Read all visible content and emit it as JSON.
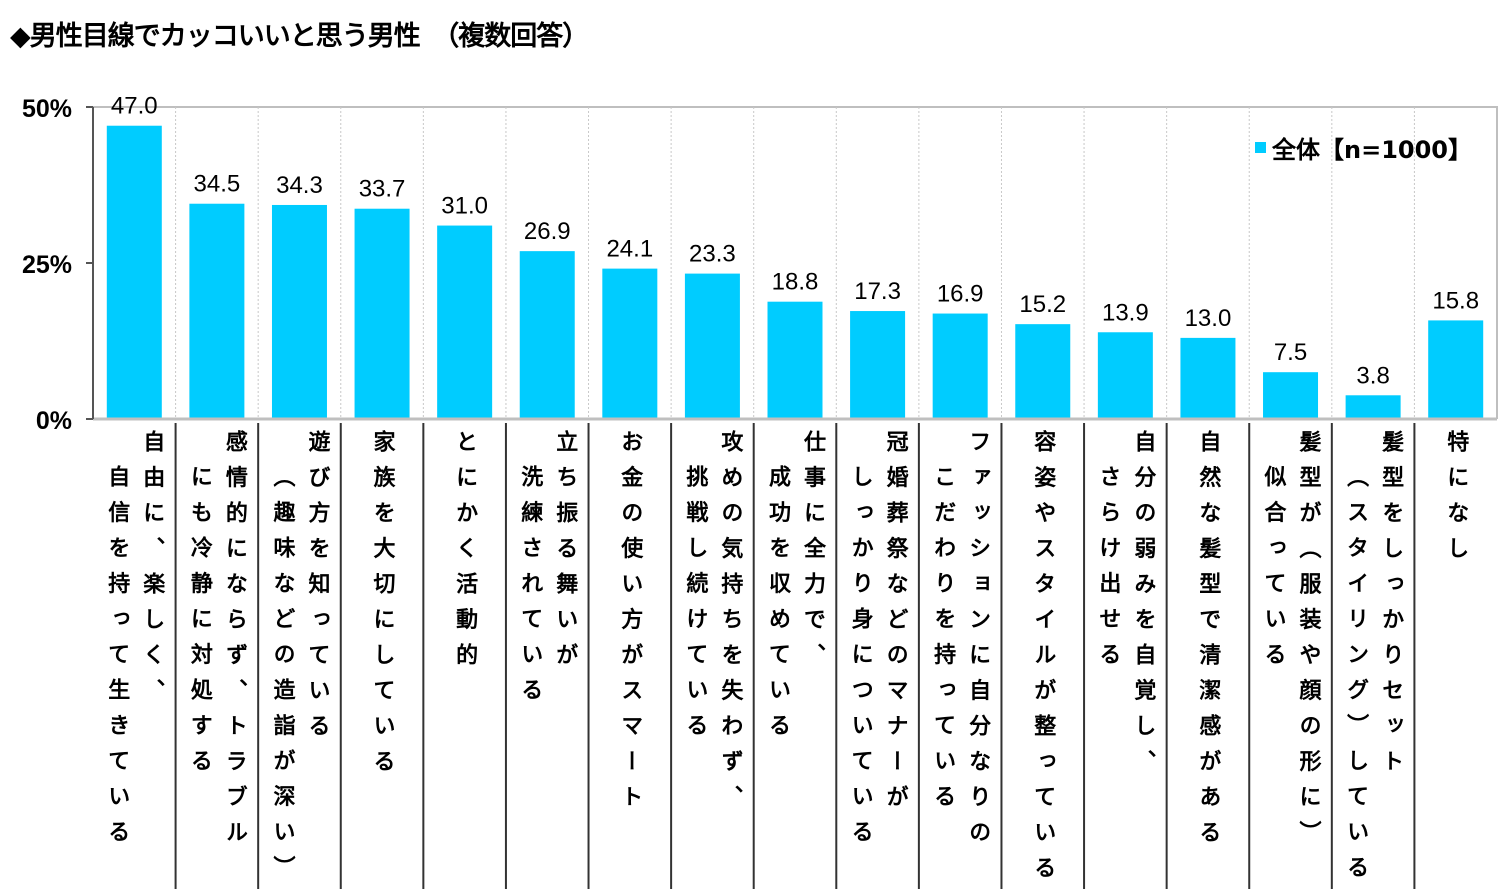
{
  "chart_data": {
    "type": "bar",
    "title": "◆男性目線でカッコいいと思う男性　（複数回答）",
    "legend": {
      "label": "全体【n=1000】",
      "color": "#00CCFF",
      "placement": "top-right"
    },
    "ylim": [
      0,
      50
    ],
    "yticks": [
      {
        "value": 0,
        "label": "0%"
      },
      {
        "value": 25,
        "label": "25%"
      },
      {
        "value": 50,
        "label": "50%"
      }
    ],
    "xlabel": "",
    "ylabel": "",
    "categories": [
      [
        "自由に、楽しく、",
        "自信を持って生きている"
      ],
      [
        "感情的にならず、トラブル",
        "にも冷静に対処する"
      ],
      [
        "遊び方を知っている",
        "（趣味などの造詣が深い）"
      ],
      [
        "家族を大切にしている"
      ],
      [
        "とにかく活動的"
      ],
      [
        "立ち振る舞いが",
        "洗練されている"
      ],
      [
        "お金の使い方がスマート"
      ],
      [
        "攻めの気持ちを失わず、",
        "挑戦し続けている"
      ],
      [
        "仕事に全力で、",
        "成功を収めている"
      ],
      [
        "冠婚葬祭などのマナーが",
        "しっかり身についている"
      ],
      [
        "ファッションに自分なりの",
        "こだわりを持っている"
      ],
      [
        "容姿やスタイルが整っている"
      ],
      [
        "自分の弱みを自覚し、",
        "さらけ出せる"
      ],
      [
        "自然な髪型で清潔感がある"
      ],
      [
        "髪型が（服装や顔の形に）",
        "似合っている"
      ],
      [
        "髪型をしっかりセット",
        "（スタイリング）している"
      ],
      [
        "特になし"
      ]
    ],
    "values": [
      47.0,
      34.5,
      34.3,
      33.7,
      31.0,
      26.9,
      24.1,
      23.3,
      18.8,
      17.3,
      16.9,
      15.2,
      13.9,
      13.0,
      7.5,
      3.8,
      15.8
    ],
    "value_labels": [
      "47.0",
      "34.5",
      "34.3",
      "33.7",
      "31.0",
      "26.9",
      "24.1",
      "23.3",
      "18.8",
      "17.3",
      "16.9",
      "15.2",
      "13.9",
      "13.0",
      "7.5",
      "3.8",
      "15.8"
    ],
    "grid": "vertical-dashed"
  }
}
